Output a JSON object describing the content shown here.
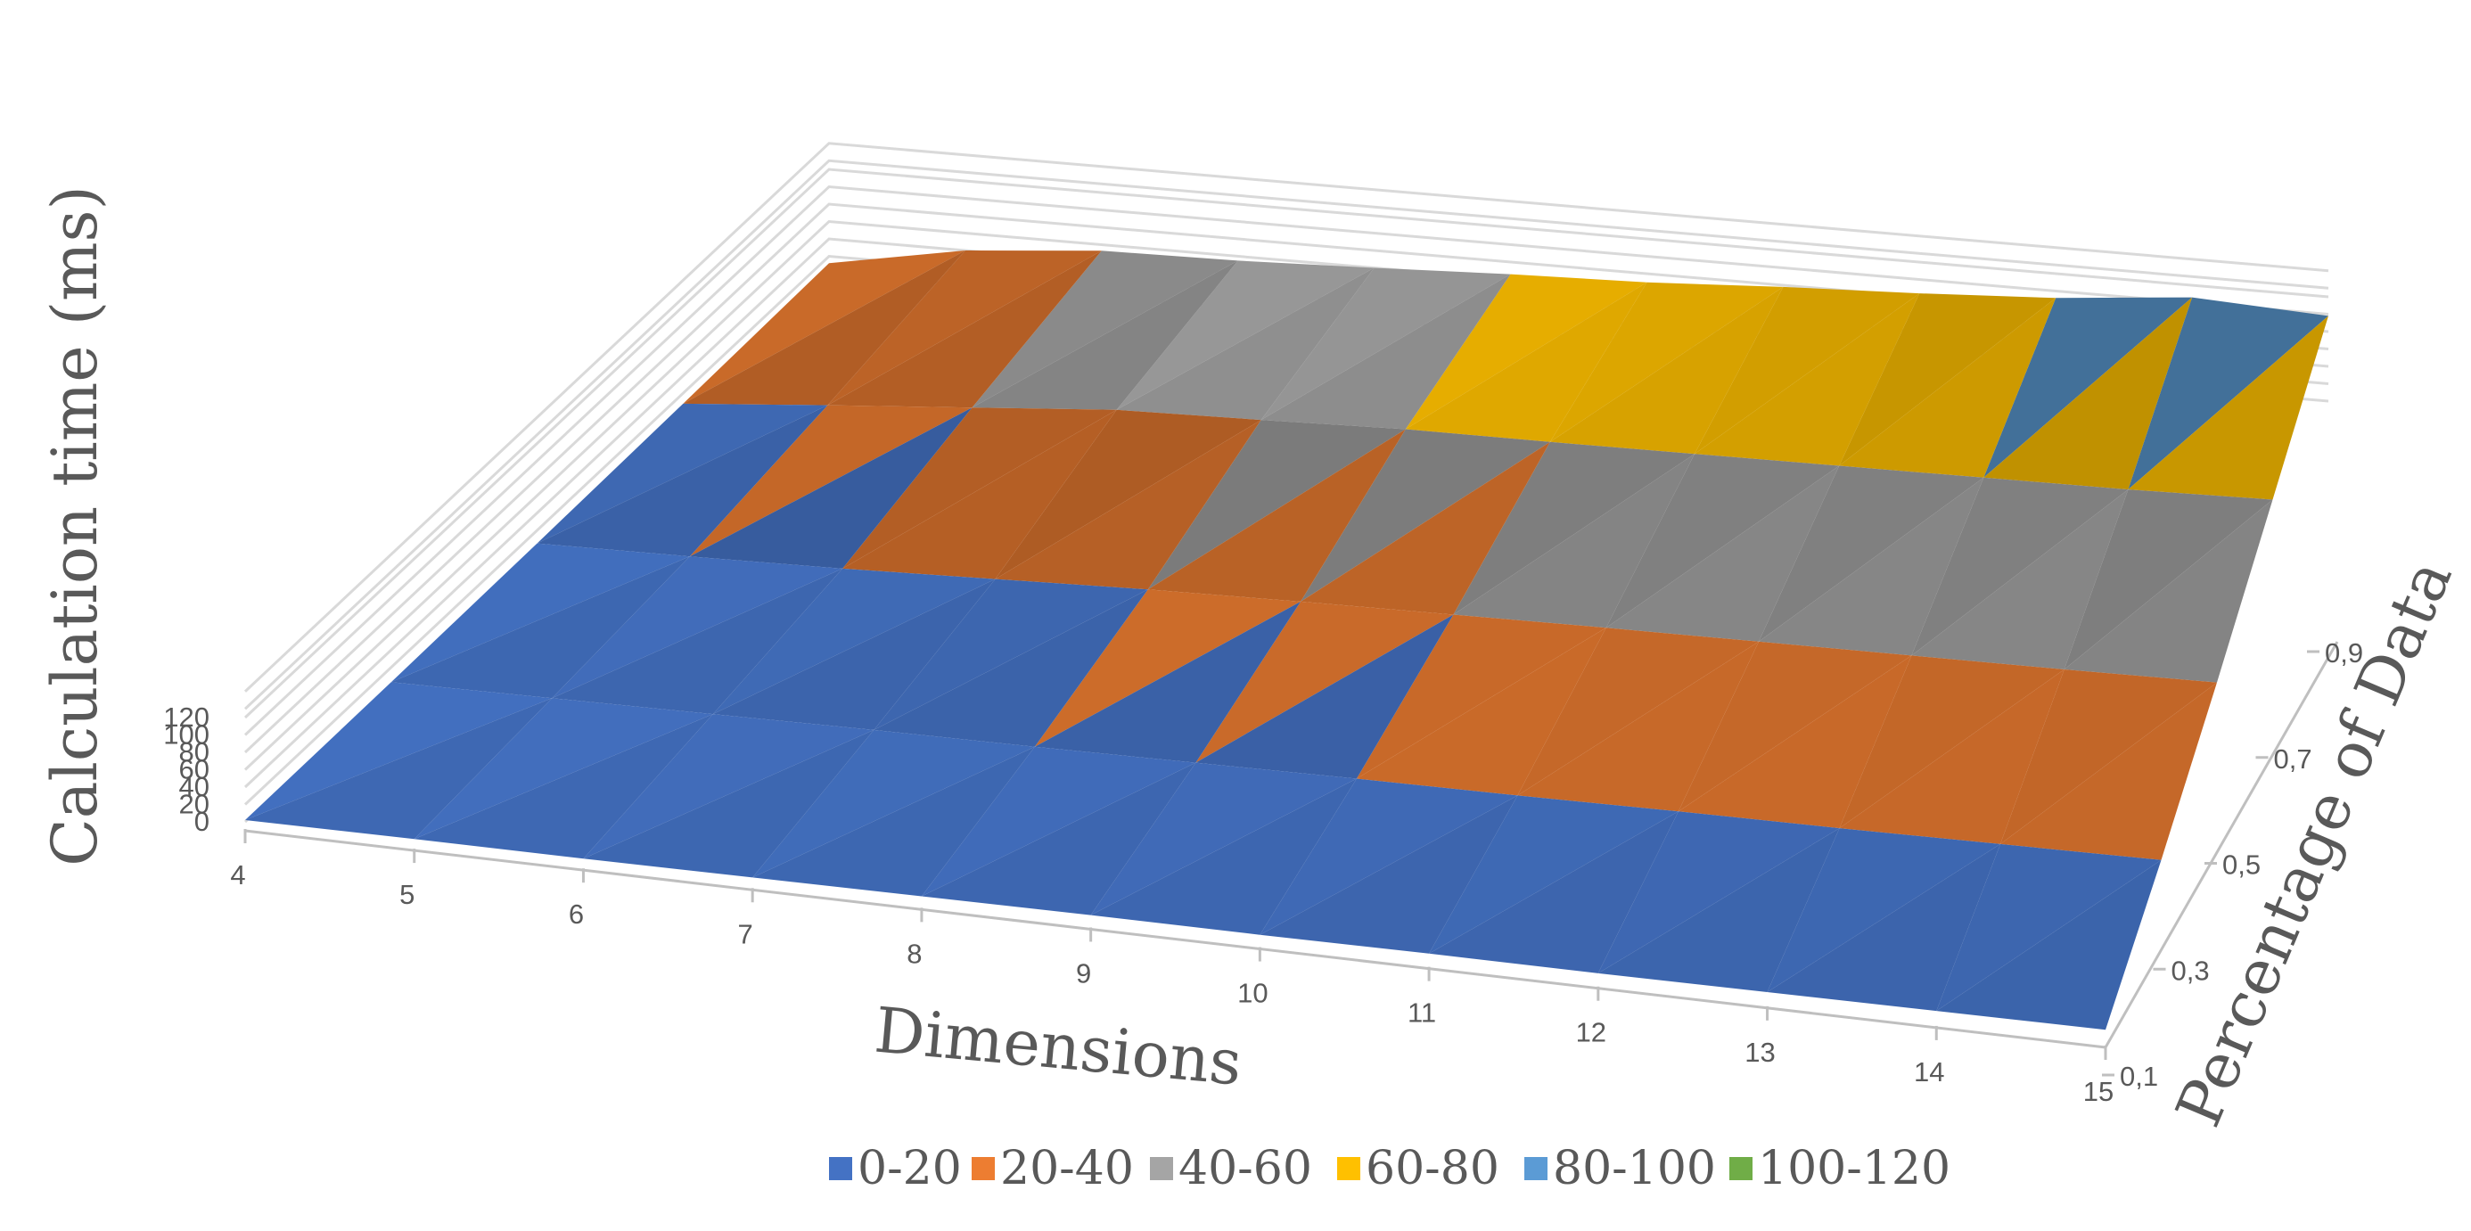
{
  "chart_data": {
    "type": "surface",
    "title": "",
    "xlabel": "Dimensions",
    "ylabel": "Percentage of Data",
    "zlabel": "Calculation time (ms)",
    "x": [
      4,
      5,
      6,
      7,
      8,
      9,
      10,
      11,
      12,
      13,
      14,
      15
    ],
    "y": [
      "0,1",
      "0,3",
      "0,5",
      "0,7",
      "0,9"
    ],
    "z_ticks": [
      "0",
      "20",
      "40",
      "60",
      "80",
      "100",
      "120"
    ],
    "zlim": [
      0,
      120
    ],
    "grid": true,
    "legend_position": "bottom",
    "bands": [
      {
        "label": "0-20",
        "min": 0,
        "max": 20,
        "color": "#4472c4"
      },
      {
        "label": "20-40",
        "min": 20,
        "max": 40,
        "color": "#ed7d31"
      },
      {
        "label": "40-60",
        "min": 40,
        "max": 60,
        "color": "#a5a5a5"
      },
      {
        "label": "60-80",
        "min": 60,
        "max": 80,
        "color": "#ffc000"
      },
      {
        "label": "80-100",
        "min": 80,
        "max": 100,
        "color": "#5b9bd5"
      },
      {
        "label": "100-120",
        "min": 100,
        "max": 120,
        "color": "#70ad47"
      }
    ],
    "values": [
      [
        2,
        3,
        3,
        4,
        5,
        6,
        6,
        7,
        7,
        8,
        9,
        10
      ],
      [
        3,
        5,
        7,
        9,
        10,
        12,
        14,
        15,
        17,
        18,
        20,
        22
      ],
      [
        5,
        8,
        12,
        18,
        24,
        28,
        31,
        34,
        36,
        38,
        40,
        43
      ],
      [
        8,
        22,
        35,
        48,
        52,
        57,
        58,
        60,
        62,
        64,
        66,
        70
      ],
      [
        12,
        40,
        53,
        55,
        60,
        66,
        70,
        78,
        84,
        92,
        106,
        98
      ]
    ]
  }
}
